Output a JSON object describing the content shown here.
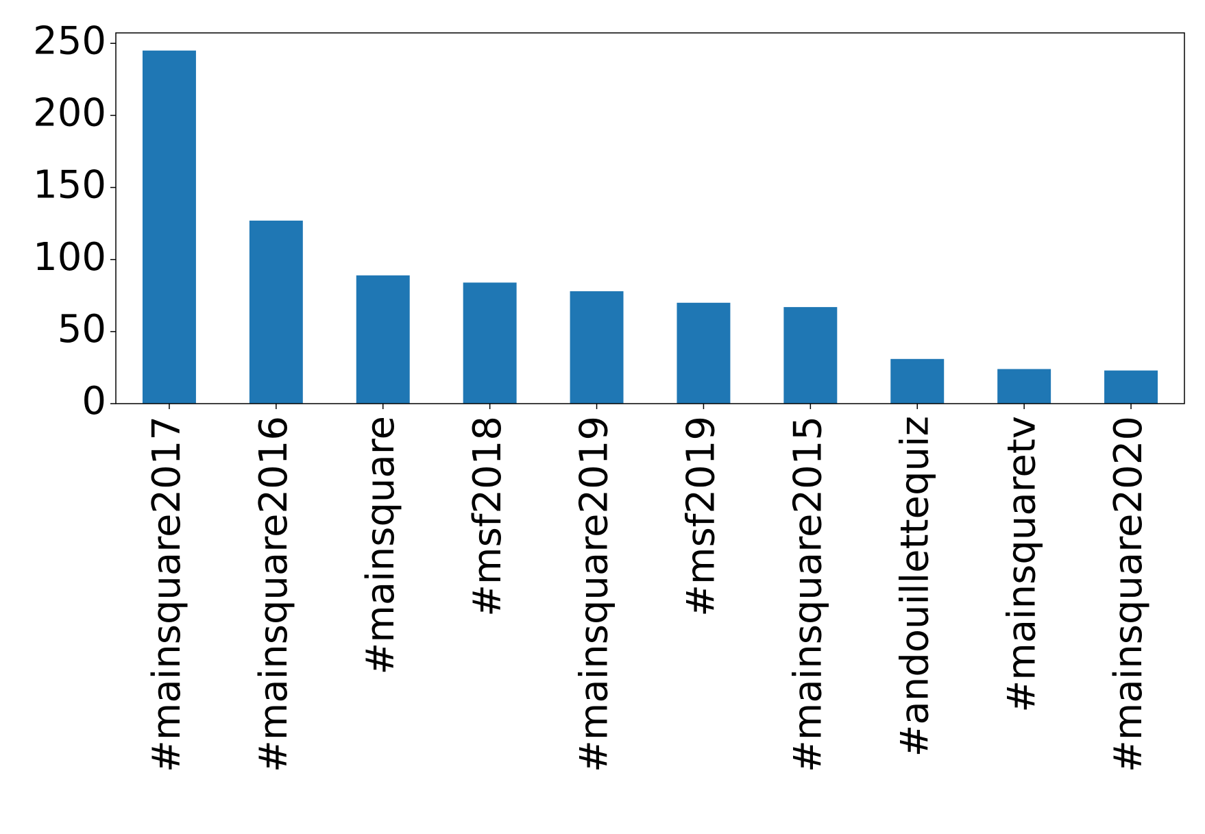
{
  "chart_data": {
    "type": "bar",
    "categories": [
      "#mainsquare2017",
      "#mainsquare2016",
      "#mainsquare",
      "#msf2018",
      "#mainsquare2019",
      "#msf2019",
      "#mainsquare2015",
      "#andouillettequiz",
      "#mainsquaretv",
      "#mainsquare2020"
    ],
    "values": [
      245,
      127,
      89,
      84,
      78,
      70,
      67,
      31,
      24,
      23
    ],
    "color": "#1f77b4",
    "ylim": [
      0,
      257.25
    ],
    "yticks": [
      0,
      50,
      100,
      150,
      200,
      250
    ],
    "grid": false
  }
}
